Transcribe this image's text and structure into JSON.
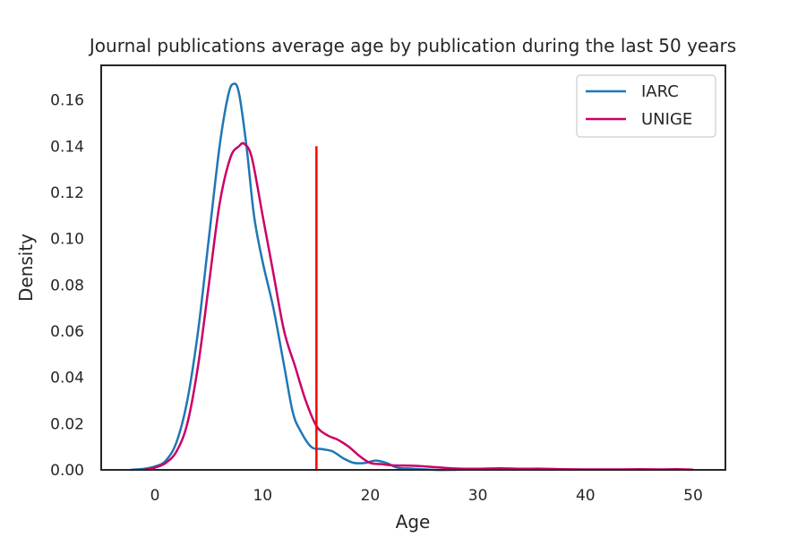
{
  "chart_data": {
    "type": "line",
    "title": "Journal publications average age by publication during the last 50 years",
    "xlabel": "Age",
    "ylabel": "Density",
    "xlim": [
      -5,
      53
    ],
    "ylim": [
      0,
      0.175
    ],
    "x_ticks": [
      0,
      10,
      20,
      30,
      40,
      50
    ],
    "y_ticks": [
      0.0,
      0.02,
      0.04,
      0.06,
      0.08,
      0.1,
      0.12,
      0.14,
      0.16
    ],
    "x_tick_labels": [
      "0",
      "10",
      "20",
      "30",
      "40",
      "50"
    ],
    "y_tick_labels": [
      "0.00",
      "0.02",
      "0.04",
      "0.06",
      "0.08",
      "0.10",
      "0.12",
      "0.14",
      "0.16"
    ],
    "grid": false,
    "legend_position": "top-right",
    "series": [
      {
        "name": "IARC",
        "color": "#1f77b4",
        "points": [
          [
            -2.3,
            0.0
          ],
          [
            -1,
            0.0005
          ],
          [
            0,
            0.0015
          ],
          [
            1,
            0.004
          ],
          [
            2,
            0.012
          ],
          [
            3,
            0.03
          ],
          [
            4,
            0.06
          ],
          [
            5,
            0.1
          ],
          [
            6,
            0.14
          ],
          [
            6.8,
            0.162
          ],
          [
            7.3,
            0.167
          ],
          [
            7.8,
            0.163
          ],
          [
            8.5,
            0.14
          ],
          [
            9.2,
            0.11
          ],
          [
            10,
            0.09
          ],
          [
            11,
            0.07
          ],
          [
            12,
            0.045
          ],
          [
            12.8,
            0.025
          ],
          [
            13.5,
            0.017
          ],
          [
            14.5,
            0.01
          ],
          [
            15.5,
            0.009
          ],
          [
            16.5,
            0.008
          ],
          [
            17.5,
            0.005
          ],
          [
            18.5,
            0.003
          ],
          [
            19.5,
            0.003
          ],
          [
            20.5,
            0.004
          ],
          [
            21.5,
            0.003
          ],
          [
            22.5,
            0.001
          ],
          [
            24,
            0.0005
          ],
          [
            26,
            0.0
          ],
          [
            28,
            0.0
          ]
        ]
      },
      {
        "name": "UNIGE",
        "color": "#cc0066",
        "points": [
          [
            -1,
            0.0
          ],
          [
            0,
            0.001
          ],
          [
            1,
            0.003
          ],
          [
            2,
            0.008
          ],
          [
            3,
            0.02
          ],
          [
            4,
            0.045
          ],
          [
            5,
            0.08
          ],
          [
            6,
            0.115
          ],
          [
            7,
            0.135
          ],
          [
            7.8,
            0.14
          ],
          [
            8.3,
            0.141
          ],
          [
            9,
            0.135
          ],
          [
            10,
            0.11
          ],
          [
            11,
            0.085
          ],
          [
            12,
            0.06
          ],
          [
            13,
            0.045
          ],
          [
            14,
            0.03
          ],
          [
            15,
            0.019
          ],
          [
            16,
            0.015
          ],
          [
            17,
            0.013
          ],
          [
            18,
            0.01
          ],
          [
            19,
            0.006
          ],
          [
            20,
            0.003
          ],
          [
            21,
            0.0025
          ],
          [
            22,
            0.002
          ],
          [
            24,
            0.0018
          ],
          [
            26,
            0.0012
          ],
          [
            28,
            0.0006
          ],
          [
            30,
            0.0005
          ],
          [
            32,
            0.0007
          ],
          [
            34,
            0.0005
          ],
          [
            36,
            0.0005
          ],
          [
            38,
            0.0003
          ],
          [
            40,
            0.0002
          ],
          [
            43,
            0.0002
          ],
          [
            45,
            0.0003
          ],
          [
            47,
            0.0002
          ],
          [
            48.5,
            0.0003
          ],
          [
            50,
            0.0001
          ]
        ]
      }
    ],
    "annotations": [
      {
        "type": "vline",
        "x": 15,
        "y_range": [
          0,
          0.14
        ],
        "color": "#ff0000"
      }
    ]
  }
}
